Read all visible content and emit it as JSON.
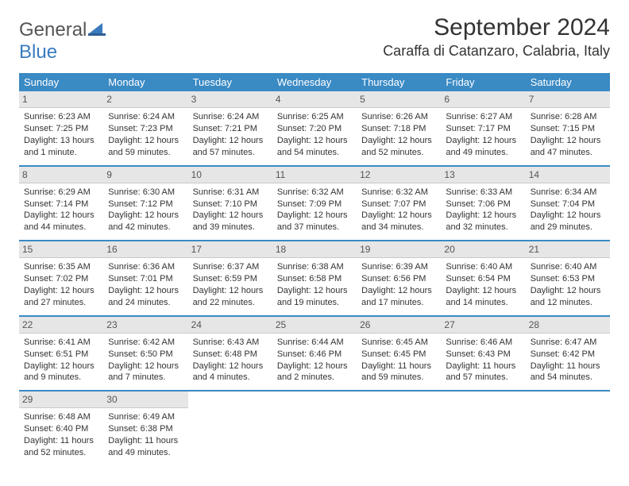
{
  "logo": {
    "general": "General",
    "blue": "Blue"
  },
  "title": "September 2024",
  "location": "Caraffa di Catanzaro, Calabria, Italy",
  "colors": {
    "header_bg": "#3a8ac4",
    "header_text": "#ffffff",
    "daynum_bg": "#e6e6e6",
    "row_border": "#3a8ac4",
    "logo_blue": "#3a7bbf",
    "text": "#333333"
  },
  "weekdays": [
    "Sunday",
    "Monday",
    "Tuesday",
    "Wednesday",
    "Thursday",
    "Friday",
    "Saturday"
  ],
  "weeks": [
    [
      {
        "n": "1",
        "sr": "Sunrise: 6:23 AM",
        "ss": "Sunset: 7:25 PM",
        "dl": "Daylight: 13 hours and 1 minute."
      },
      {
        "n": "2",
        "sr": "Sunrise: 6:24 AM",
        "ss": "Sunset: 7:23 PM",
        "dl": "Daylight: 12 hours and 59 minutes."
      },
      {
        "n": "3",
        "sr": "Sunrise: 6:24 AM",
        "ss": "Sunset: 7:21 PM",
        "dl": "Daylight: 12 hours and 57 minutes."
      },
      {
        "n": "4",
        "sr": "Sunrise: 6:25 AM",
        "ss": "Sunset: 7:20 PM",
        "dl": "Daylight: 12 hours and 54 minutes."
      },
      {
        "n": "5",
        "sr": "Sunrise: 6:26 AM",
        "ss": "Sunset: 7:18 PM",
        "dl": "Daylight: 12 hours and 52 minutes."
      },
      {
        "n": "6",
        "sr": "Sunrise: 6:27 AM",
        "ss": "Sunset: 7:17 PM",
        "dl": "Daylight: 12 hours and 49 minutes."
      },
      {
        "n": "7",
        "sr": "Sunrise: 6:28 AM",
        "ss": "Sunset: 7:15 PM",
        "dl": "Daylight: 12 hours and 47 minutes."
      }
    ],
    [
      {
        "n": "8",
        "sr": "Sunrise: 6:29 AM",
        "ss": "Sunset: 7:14 PM",
        "dl": "Daylight: 12 hours and 44 minutes."
      },
      {
        "n": "9",
        "sr": "Sunrise: 6:30 AM",
        "ss": "Sunset: 7:12 PM",
        "dl": "Daylight: 12 hours and 42 minutes."
      },
      {
        "n": "10",
        "sr": "Sunrise: 6:31 AM",
        "ss": "Sunset: 7:10 PM",
        "dl": "Daylight: 12 hours and 39 minutes."
      },
      {
        "n": "11",
        "sr": "Sunrise: 6:32 AM",
        "ss": "Sunset: 7:09 PM",
        "dl": "Daylight: 12 hours and 37 minutes."
      },
      {
        "n": "12",
        "sr": "Sunrise: 6:32 AM",
        "ss": "Sunset: 7:07 PM",
        "dl": "Daylight: 12 hours and 34 minutes."
      },
      {
        "n": "13",
        "sr": "Sunrise: 6:33 AM",
        "ss": "Sunset: 7:06 PM",
        "dl": "Daylight: 12 hours and 32 minutes."
      },
      {
        "n": "14",
        "sr": "Sunrise: 6:34 AM",
        "ss": "Sunset: 7:04 PM",
        "dl": "Daylight: 12 hours and 29 minutes."
      }
    ],
    [
      {
        "n": "15",
        "sr": "Sunrise: 6:35 AM",
        "ss": "Sunset: 7:02 PM",
        "dl": "Daylight: 12 hours and 27 minutes."
      },
      {
        "n": "16",
        "sr": "Sunrise: 6:36 AM",
        "ss": "Sunset: 7:01 PM",
        "dl": "Daylight: 12 hours and 24 minutes."
      },
      {
        "n": "17",
        "sr": "Sunrise: 6:37 AM",
        "ss": "Sunset: 6:59 PM",
        "dl": "Daylight: 12 hours and 22 minutes."
      },
      {
        "n": "18",
        "sr": "Sunrise: 6:38 AM",
        "ss": "Sunset: 6:58 PM",
        "dl": "Daylight: 12 hours and 19 minutes."
      },
      {
        "n": "19",
        "sr": "Sunrise: 6:39 AM",
        "ss": "Sunset: 6:56 PM",
        "dl": "Daylight: 12 hours and 17 minutes."
      },
      {
        "n": "20",
        "sr": "Sunrise: 6:40 AM",
        "ss": "Sunset: 6:54 PM",
        "dl": "Daylight: 12 hours and 14 minutes."
      },
      {
        "n": "21",
        "sr": "Sunrise: 6:40 AM",
        "ss": "Sunset: 6:53 PM",
        "dl": "Daylight: 12 hours and 12 minutes."
      }
    ],
    [
      {
        "n": "22",
        "sr": "Sunrise: 6:41 AM",
        "ss": "Sunset: 6:51 PM",
        "dl": "Daylight: 12 hours and 9 minutes."
      },
      {
        "n": "23",
        "sr": "Sunrise: 6:42 AM",
        "ss": "Sunset: 6:50 PM",
        "dl": "Daylight: 12 hours and 7 minutes."
      },
      {
        "n": "24",
        "sr": "Sunrise: 6:43 AM",
        "ss": "Sunset: 6:48 PM",
        "dl": "Daylight: 12 hours and 4 minutes."
      },
      {
        "n": "25",
        "sr": "Sunrise: 6:44 AM",
        "ss": "Sunset: 6:46 PM",
        "dl": "Daylight: 12 hours and 2 minutes."
      },
      {
        "n": "26",
        "sr": "Sunrise: 6:45 AM",
        "ss": "Sunset: 6:45 PM",
        "dl": "Daylight: 11 hours and 59 minutes."
      },
      {
        "n": "27",
        "sr": "Sunrise: 6:46 AM",
        "ss": "Sunset: 6:43 PM",
        "dl": "Daylight: 11 hours and 57 minutes."
      },
      {
        "n": "28",
        "sr": "Sunrise: 6:47 AM",
        "ss": "Sunset: 6:42 PM",
        "dl": "Daylight: 11 hours and 54 minutes."
      }
    ],
    [
      {
        "n": "29",
        "sr": "Sunrise: 6:48 AM",
        "ss": "Sunset: 6:40 PM",
        "dl": "Daylight: 11 hours and 52 minutes."
      },
      {
        "n": "30",
        "sr": "Sunrise: 6:49 AM",
        "ss": "Sunset: 6:38 PM",
        "dl": "Daylight: 11 hours and 49 minutes."
      },
      null,
      null,
      null,
      null,
      null
    ]
  ]
}
